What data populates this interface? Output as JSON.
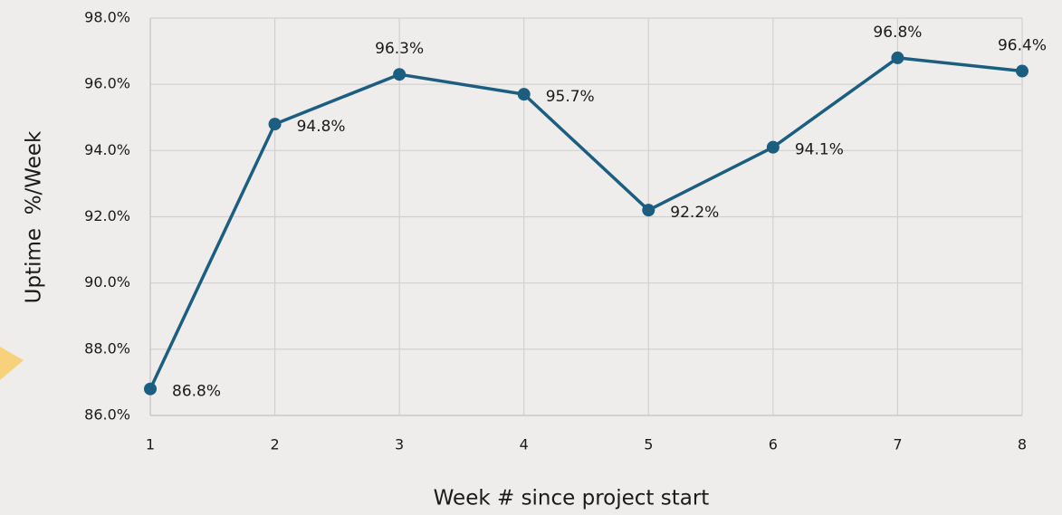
{
  "chart_data": {
    "type": "line",
    "x_label": "Week # since project start",
    "y_label": "Uptime  %/Week",
    "x": [
      1,
      2,
      3,
      4,
      5,
      6,
      7,
      8
    ],
    "series": [
      {
        "color": "#1b5e80",
        "values": [
          86.8,
          94.8,
          96.3,
          95.7,
          92.2,
          94.1,
          96.8,
          96.4
        ],
        "value_labels": [
          "86.8%",
          "94.8%",
          "96.3%",
          "95.7%",
          "92.2%",
          "94.1%",
          "96.8%",
          "96.4%"
        ]
      }
    ],
    "xlim": [
      1,
      8
    ],
    "xticks": [
      1,
      2,
      3,
      4,
      5,
      6,
      7,
      8
    ],
    "ylim": [
      86,
      98
    ],
    "yticks": [
      {
        "value": 86,
        "label": "86.0%"
      },
      {
        "value": 88,
        "label": "88.0%"
      },
      {
        "value": 90,
        "label": "90.0%"
      },
      {
        "value": 92,
        "label": "92.0%"
      },
      {
        "value": 94,
        "label": "94.0%"
      },
      {
        "value": 96,
        "label": "96.0%"
      },
      {
        "value": 98,
        "label": "98.0%"
      }
    ],
    "grid": true
  }
}
